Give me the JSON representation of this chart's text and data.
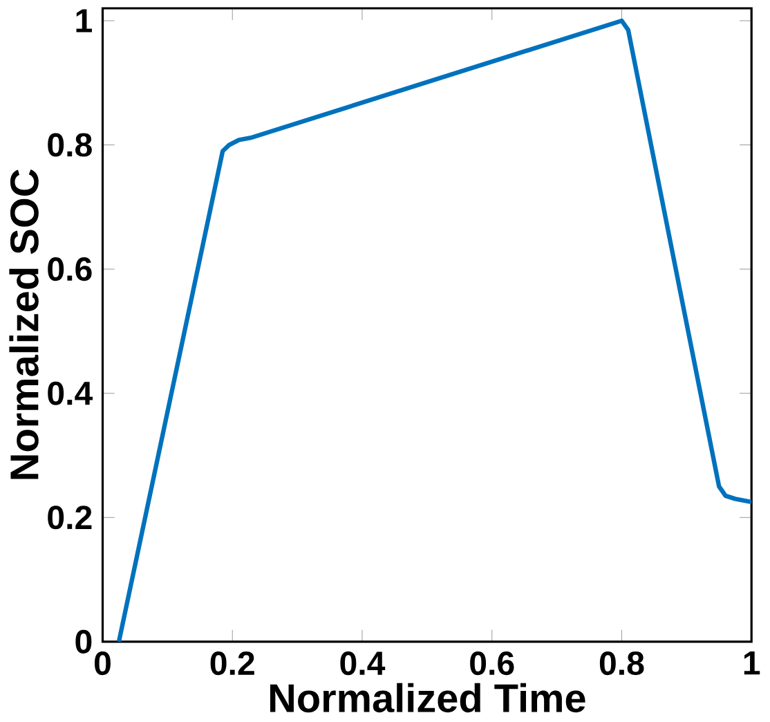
{
  "chart_data": {
    "type": "line",
    "xlabel": "Normalized Time",
    "ylabel": "Normalized SOC",
    "xlim": [
      0,
      1
    ],
    "ylim": [
      0,
      1.02
    ],
    "xticks": [
      0,
      0.2,
      0.4,
      0.6,
      0.8,
      1
    ],
    "yticks": [
      0,
      0.2,
      0.4,
      0.6,
      0.8,
      1
    ],
    "x": [
      0.025,
      0.185,
      0.195,
      0.21,
      0.23,
      0.8,
      0.81,
      0.95,
      0.96,
      0.975,
      1
    ],
    "series": [
      {
        "color": "#0072bd",
        "values": [
          0,
          0.79,
          0.8,
          0.808,
          0.812,
          1.0,
          0.985,
          0.25,
          0.235,
          0.23,
          0.225
        ]
      }
    ]
  }
}
